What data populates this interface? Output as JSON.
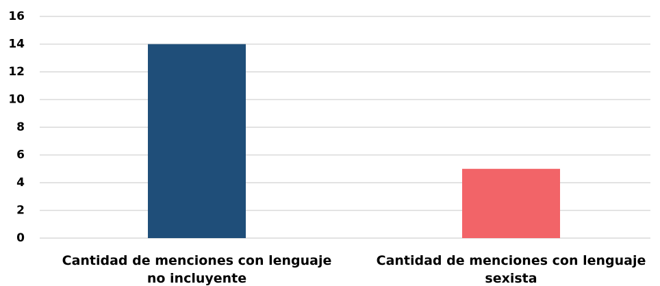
{
  "chart_data": {
    "type": "bar",
    "categories": [
      "Cantidad de menciones con lenguaje no incluyente",
      "Cantidad de menciones con lenguaje sexista"
    ],
    "values": [
      14,
      5
    ],
    "colors": [
      "#1f4e79",
      "#f26468"
    ],
    "ylim": [
      0,
      16
    ],
    "yticks": [
      0,
      2,
      4,
      6,
      8,
      10,
      12,
      14,
      16
    ],
    "grid": true
  }
}
